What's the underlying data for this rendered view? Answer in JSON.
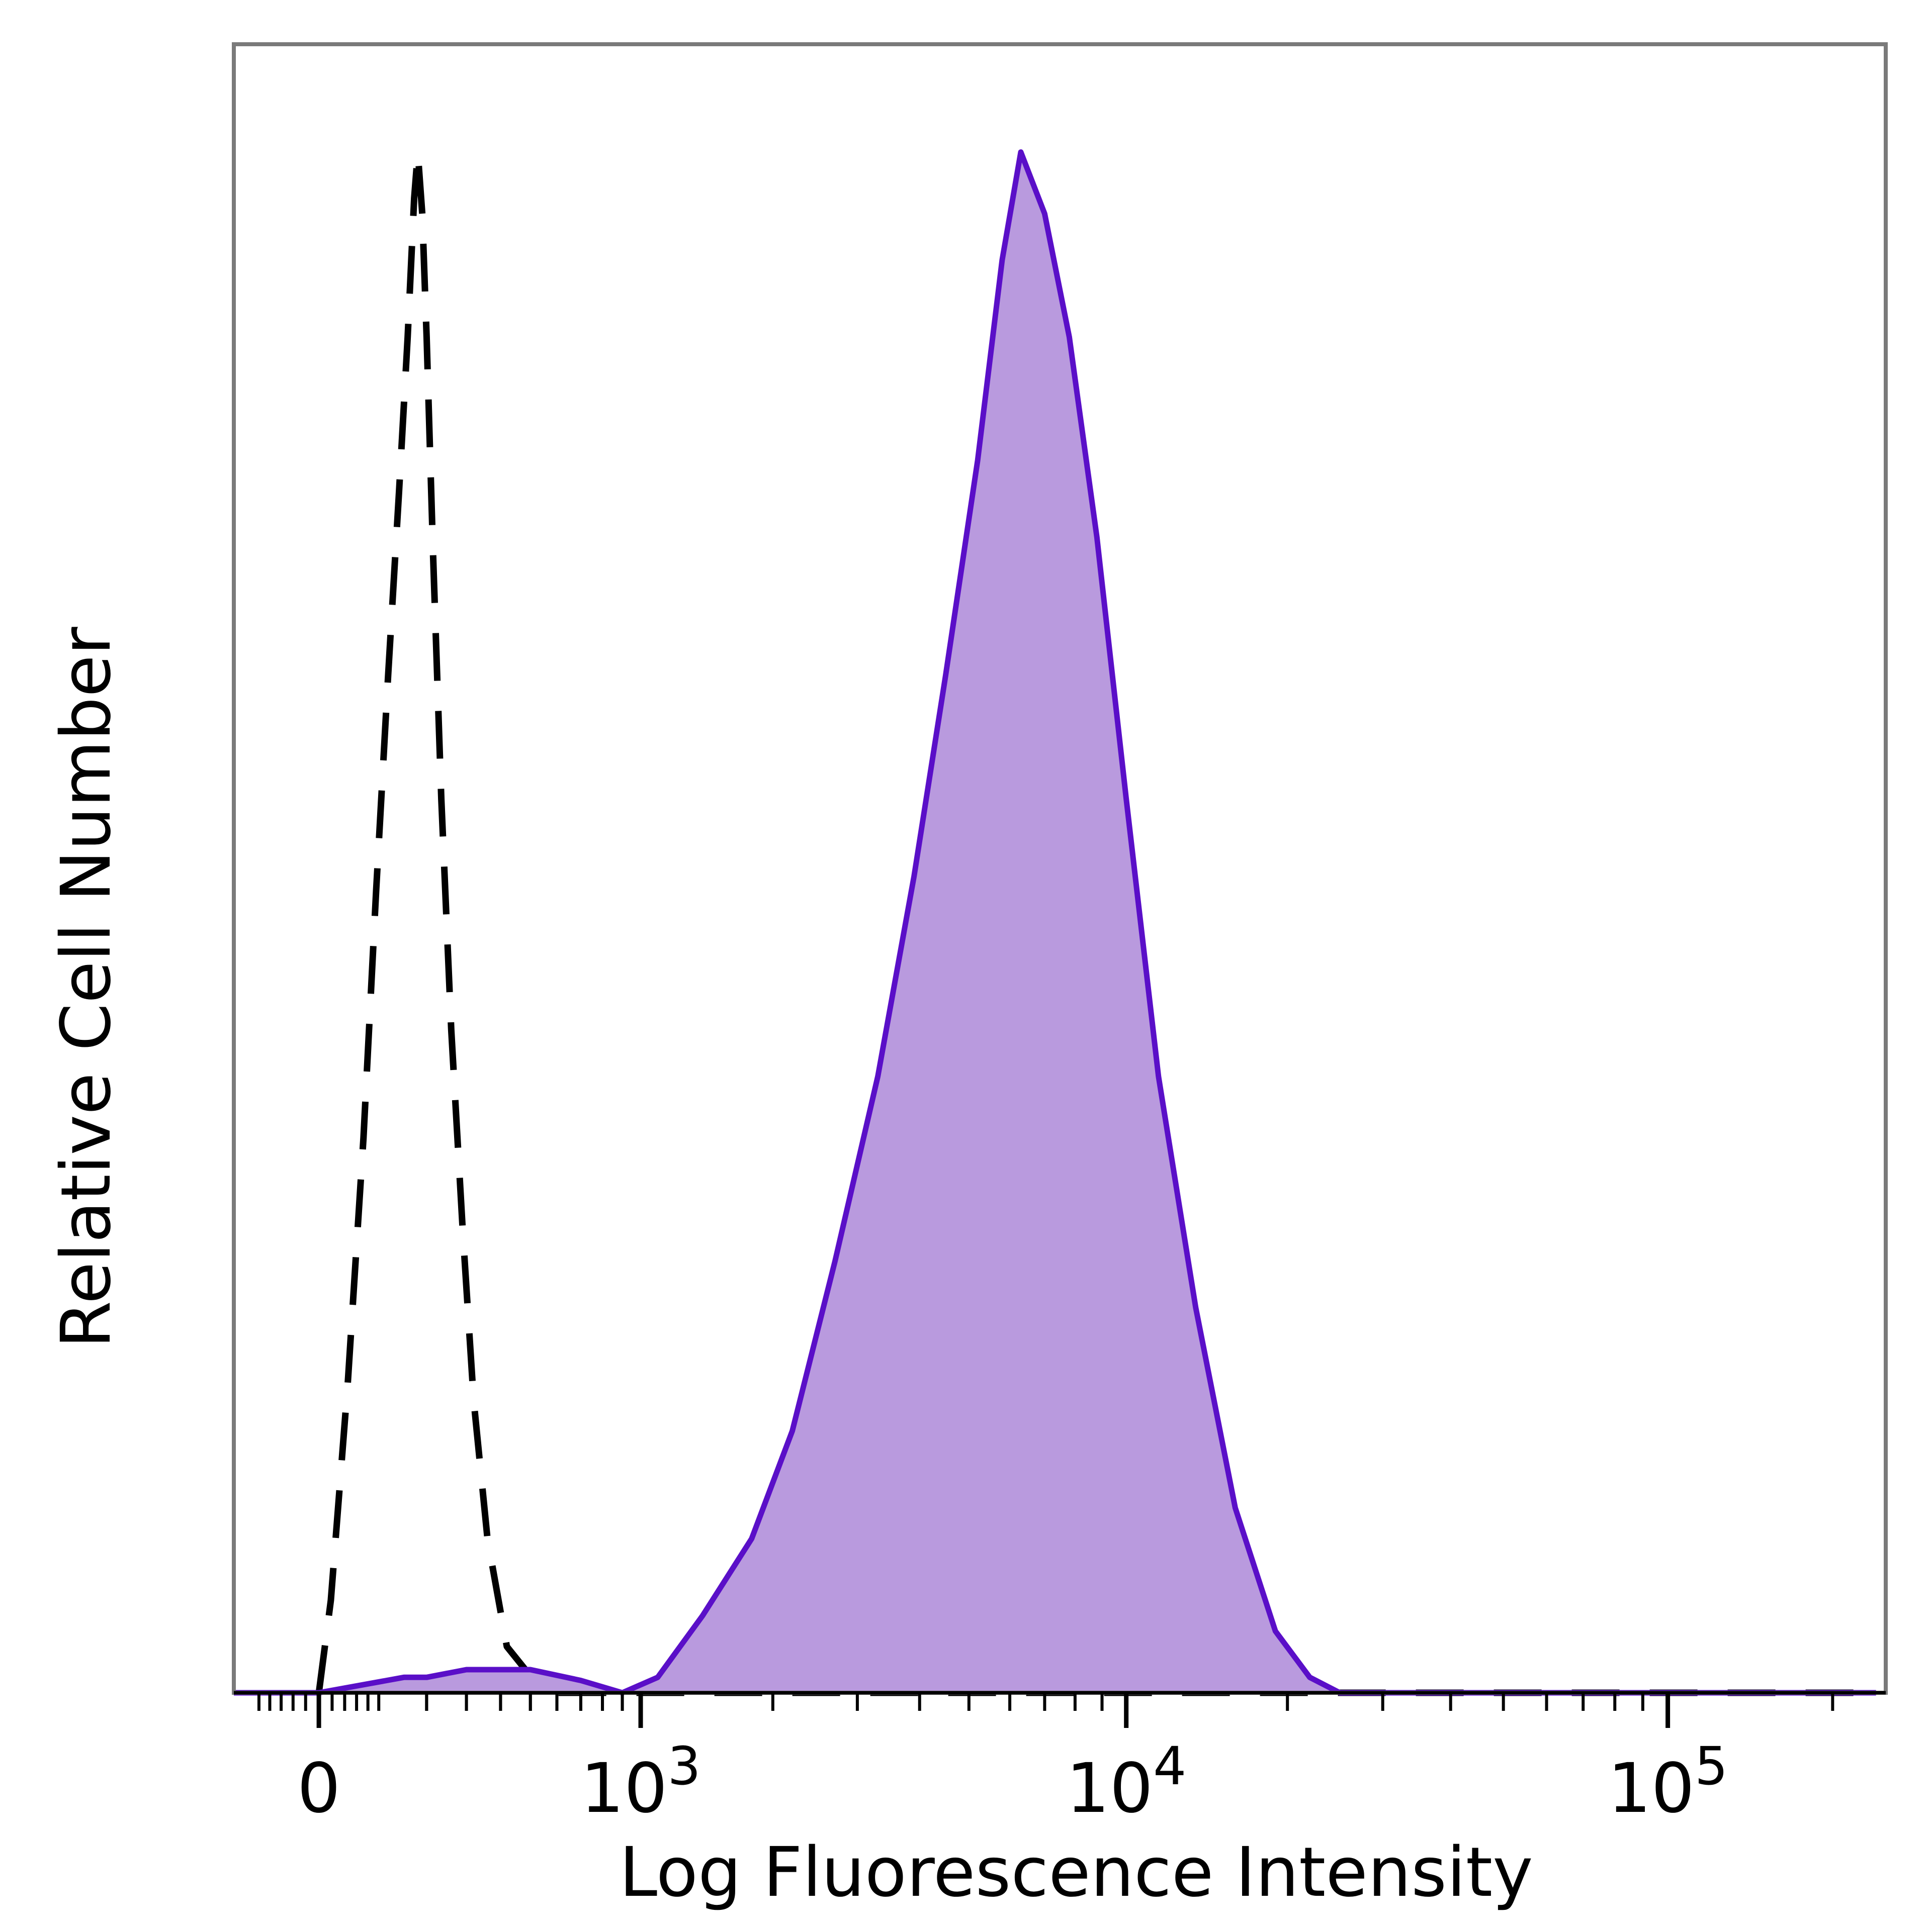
{
  "chart_data": {
    "type": "area",
    "title": "",
    "xlabel": "Log Fluorescence Intensity",
    "ylabel": "Relative Cell Number",
    "x_scale": "biexponential",
    "xlim": [
      -150,
      250000
    ],
    "ylim": [
      0,
      1.07
    ],
    "grid": false,
    "legend": "none",
    "x_ticks": [
      {
        "value": 0,
        "base": "0",
        "exp": ""
      },
      {
        "value": 1000,
        "base": "10",
        "exp": "3"
      },
      {
        "value": 10000,
        "base": "10",
        "exp": "4"
      },
      {
        "value": 100000,
        "base": "10",
        "exp": "5"
      }
    ],
    "series": [
      {
        "style": "dashed",
        "color": "#000000",
        "fill": "none",
        "x": [
          0,
          18,
          45,
          72,
          95,
          118,
          140,
          158,
          172,
          180,
          190,
          200,
          215,
          235,
          260,
          290,
          320,
          360,
          420,
          550,
          750,
          1000,
          2000,
          10000,
          240000
        ],
        "y": [
          0.0,
          0.06,
          0.2,
          0.36,
          0.52,
          0.66,
          0.78,
          0.88,
          0.97,
          1.0,
          0.96,
          0.88,
          0.74,
          0.58,
          0.43,
          0.3,
          0.19,
          0.1,
          0.03,
          0.0,
          0.0,
          0.0,
          0.0,
          0.0,
          0.0
        ]
      },
      {
        "style": "solid",
        "color": "#5a0fc8",
        "fill": "#b99ade",
        "x": [
          -150,
          0,
          150,
          200,
          300,
          500,
          700,
          900,
          1100,
          1400,
          1800,
          2200,
          2700,
          3300,
          3900,
          4500,
          5200,
          5800,
          6300,
          7000,
          7800,
          8800,
          10000,
          11500,
          13500,
          16000,
          19000,
          22000,
          25000,
          30000,
          50000,
          240000
        ],
        "y": [
          0.0,
          0.0,
          0.01,
          0.01,
          0.015,
          0.015,
          0.008,
          0.0,
          0.01,
          0.05,
          0.1,
          0.17,
          0.28,
          0.4,
          0.53,
          0.66,
          0.8,
          0.93,
          1.0,
          0.96,
          0.88,
          0.75,
          0.58,
          0.4,
          0.25,
          0.12,
          0.04,
          0.01,
          0.0,
          0.0,
          0.0,
          0.0
        ]
      }
    ]
  }
}
